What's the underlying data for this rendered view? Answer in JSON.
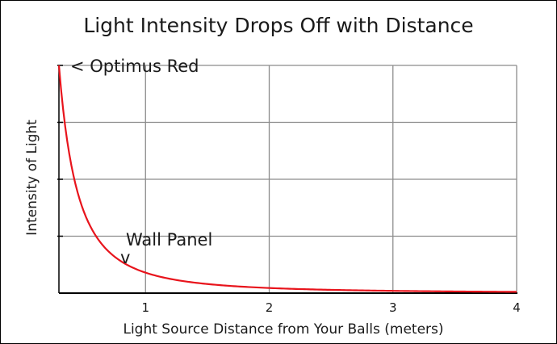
{
  "chart_data": {
    "type": "line",
    "title": "Light Intensity Drops Off with Distance",
    "xlabel": "Light Source Distance from Your Balls (meters)",
    "ylabel": "Intensity of Light",
    "xlim": [
      0.3,
      4
    ],
    "ylim": [
      0,
      4
    ],
    "x_ticks": [
      1,
      2,
      3,
      4
    ],
    "x_tick_labels": [
      "1",
      "2",
      "3",
      "4"
    ],
    "y_ticks": [
      1,
      2,
      3,
      4
    ],
    "y_tick_labels": [
      "",
      "",
      "",
      ""
    ],
    "grid": true,
    "series": [
      {
        "color": "#e8141c",
        "x": [
          0.3,
          0.35,
          0.4,
          0.45,
          0.5,
          0.55,
          0.6,
          0.7,
          0.8,
          0.9,
          1.0,
          1.2,
          1.4,
          1.6,
          1.8,
          2.0,
          2.4,
          2.8,
          3.2,
          3.6,
          4.0
        ],
        "y": [
          4.0,
          2.94,
          2.25,
          1.78,
          1.44,
          1.19,
          1.0,
          0.73,
          0.56,
          0.44,
          0.36,
          0.25,
          0.18,
          0.14,
          0.11,
          0.09,
          0.06,
          0.046,
          0.035,
          0.028,
          0.022
        ]
      }
    ],
    "annotations": [
      {
        "text": "< Optimus Red",
        "x": 0.3,
        "y": 4.0
      },
      {
        "text": "Wall Panel",
        "x": 0.8,
        "y": 0.56,
        "marker": "v"
      }
    ]
  }
}
